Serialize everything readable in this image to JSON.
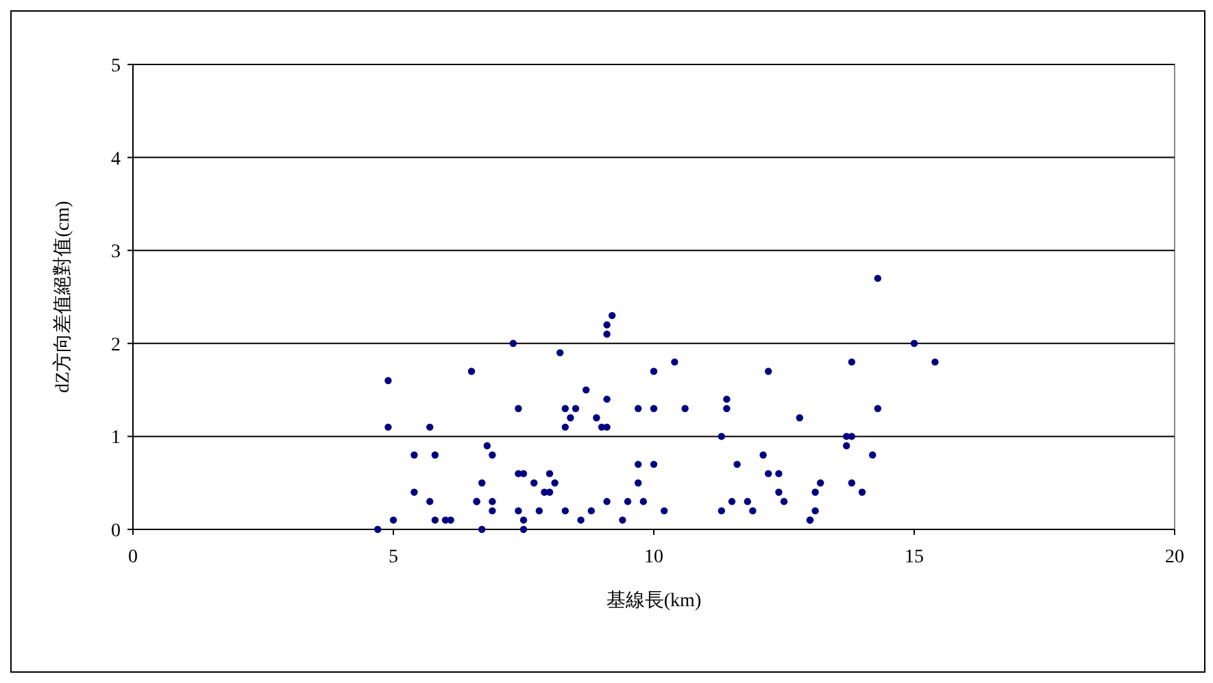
{
  "chart_data": {
    "type": "scatter",
    "xlabel": "基線長(km)",
    "ylabel": "dZ方向差值絕對值(cm)",
    "x": [
      4.7,
      4.9,
      4.9,
      5.0,
      5.4,
      5.4,
      5.7,
      5.7,
      5.8,
      5.8,
      6.0,
      6.1,
      6.5,
      6.6,
      6.6,
      6.7,
      6.7,
      6.8,
      6.9,
      6.9,
      6.9,
      7.3,
      7.4,
      7.4,
      7.5,
      7.4,
      7.5,
      7.5,
      7.7,
      7.8,
      7.9,
      8.0,
      8.0,
      8.1,
      8.2,
      8.3,
      8.3,
      8.4,
      8.5,
      8.3,
      8.6,
      8.7,
      8.8,
      8.9,
      9.0,
      9.1,
      9.1,
      9.1,
      9.1,
      9.2,
      9.1,
      9.4,
      9.5,
      9.7,
      9.7,
      9.7,
      9.8,
      10.0,
      10.0,
      10.0,
      10.2,
      10.4,
      10.6,
      11.3,
      11.3,
      11.4,
      11.4,
      11.5,
      11.6,
      11.8,
      11.9,
      12.1,
      12.2,
      12.2,
      12.4,
      12.4,
      12.5,
      12.8,
      13.0,
      13.0,
      13.1,
      13.1,
      13.2,
      13.7,
      13.7,
      13.8,
      13.8,
      13.8,
      14.0,
      14.2,
      14.3,
      14.3,
      15.0,
      15.4
    ],
    "series": [
      {
        "color": "#000080",
        "values": [
          0,
          1.6,
          1.1,
          0.1,
          0.8,
          0.4,
          0.3,
          1.1,
          0.8,
          0.1,
          0.1,
          0.1,
          1.7,
          0.3,
          0.3,
          0,
          0.5,
          0.9,
          0.8,
          0.3,
          0.2,
          2.0,
          1.3,
          0.6,
          0.6,
          0.2,
          0.1,
          0,
          0.5,
          0.2,
          0.4,
          0.4,
          0.6,
          0.5,
          1.9,
          1.3,
          1.1,
          1.2,
          1.3,
          0.2,
          0.1,
          1.5,
          0.2,
          1.2,
          1.1,
          1.4,
          1.1,
          2.2,
          2.1,
          2.3,
          0.3,
          0.1,
          0.3,
          0.5,
          0.7,
          1.3,
          0.3,
          0.7,
          1.7,
          1.3,
          0.2,
          1.8,
          1.3,
          1.0,
          0.2,
          1.4,
          1.3,
          0.3,
          0.7,
          0.3,
          0.2,
          0.8,
          1.7,
          0.6,
          0.4,
          0.6,
          0.3,
          1.2,
          0.1,
          0.1,
          0.4,
          0.2,
          0.5,
          0.9,
          1.0,
          1.0,
          0.5,
          1.8,
          0.4,
          0.8,
          2.7,
          1.3,
          2.0,
          1.8
        ]
      }
    ],
    "xlim": [
      0,
      20
    ],
    "ylim": [
      0,
      5
    ],
    "xticks": [
      0,
      5,
      10,
      15,
      20
    ],
    "yticks": [
      0,
      1,
      2,
      3,
      4,
      5
    ],
    "grid": "y",
    "marker": "circle"
  }
}
